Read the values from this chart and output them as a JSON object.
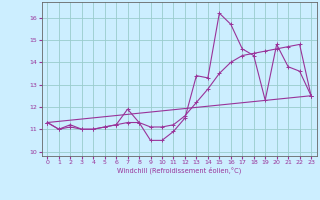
{
  "xlabel": "Windchill (Refroidissement éolien,°C)",
  "bg_color": "#cceeff",
  "grid_color": "#99cccc",
  "line_color": "#993399",
  "xlim": [
    -0.5,
    23.5
  ],
  "ylim": [
    9.8,
    16.7
  ],
  "yticks": [
    10,
    11,
    12,
    13,
    14,
    15,
    16
  ],
  "xticks": [
    0,
    1,
    2,
    3,
    4,
    5,
    6,
    7,
    8,
    9,
    10,
    11,
    12,
    13,
    14,
    15,
    16,
    17,
    18,
    19,
    20,
    21,
    22,
    23
  ],
  "series1_x": [
    0,
    1,
    2,
    3,
    4,
    5,
    6,
    7,
    8,
    9,
    10,
    11,
    12,
    13,
    14,
    15,
    16,
    17,
    18,
    19,
    20,
    21,
    22,
    23
  ],
  "series1_y": [
    11.3,
    11.0,
    11.2,
    11.0,
    11.0,
    11.1,
    11.2,
    11.9,
    11.3,
    10.5,
    10.5,
    10.9,
    11.5,
    13.4,
    13.3,
    16.2,
    15.7,
    14.6,
    14.3,
    12.3,
    14.8,
    13.8,
    13.6,
    12.5
  ],
  "series2_x": [
    0,
    1,
    2,
    3,
    4,
    5,
    6,
    7,
    8,
    9,
    10,
    11,
    12,
    13,
    14,
    15,
    16,
    17,
    18,
    19,
    20,
    21,
    22,
    23
  ],
  "series2_y": [
    11.3,
    11.0,
    11.1,
    11.0,
    11.0,
    11.1,
    11.2,
    11.3,
    11.3,
    11.1,
    11.1,
    11.2,
    11.6,
    12.2,
    12.8,
    13.5,
    14.0,
    14.3,
    14.4,
    14.5,
    14.6,
    14.7,
    14.8,
    12.5
  ],
  "series3_x": [
    0,
    23
  ],
  "series3_y": [
    11.3,
    12.5
  ]
}
